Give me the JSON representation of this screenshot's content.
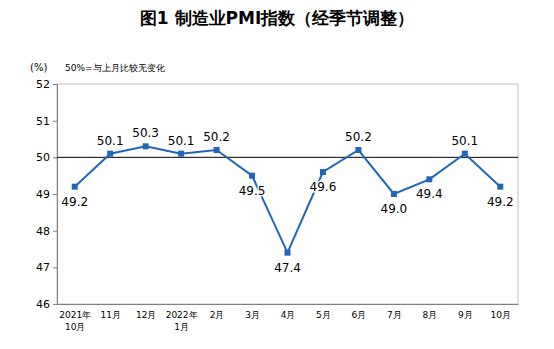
{
  "chart_data": {
    "type": "line",
    "title": "图1 制造业PMI指数（经季节调整）",
    "y_label": "(%)",
    "annotation": "50%=与上月比较无变化",
    "categories": [
      "2021年\n10月",
      "11月",
      "12月",
      "2022年\n1月",
      "2月",
      "3月",
      "4月",
      "5月",
      "6月",
      "7月",
      "8月",
      "9月",
      "10月"
    ],
    "values": [
      49.2,
      50.1,
      50.3,
      50.1,
      50.2,
      49.5,
      47.4,
      49.6,
      50.2,
      49.0,
      49.4,
      50.1,
      49.2
    ],
    "value_labels": [
      "49.2",
      "50.1",
      "50.3",
      "50.1",
      "50.2",
      "49.5",
      "47.4",
      "49.6",
      "50.2",
      "49.0",
      "49.4",
      "50.1",
      "49.2"
    ],
    "baseline": 50,
    "color": "#2166b8",
    "marker": "square",
    "data_labels": true,
    "ylim": [
      46,
      52
    ],
    "yticks": [
      46,
      47,
      48,
      49,
      50,
      51,
      52
    ]
  }
}
